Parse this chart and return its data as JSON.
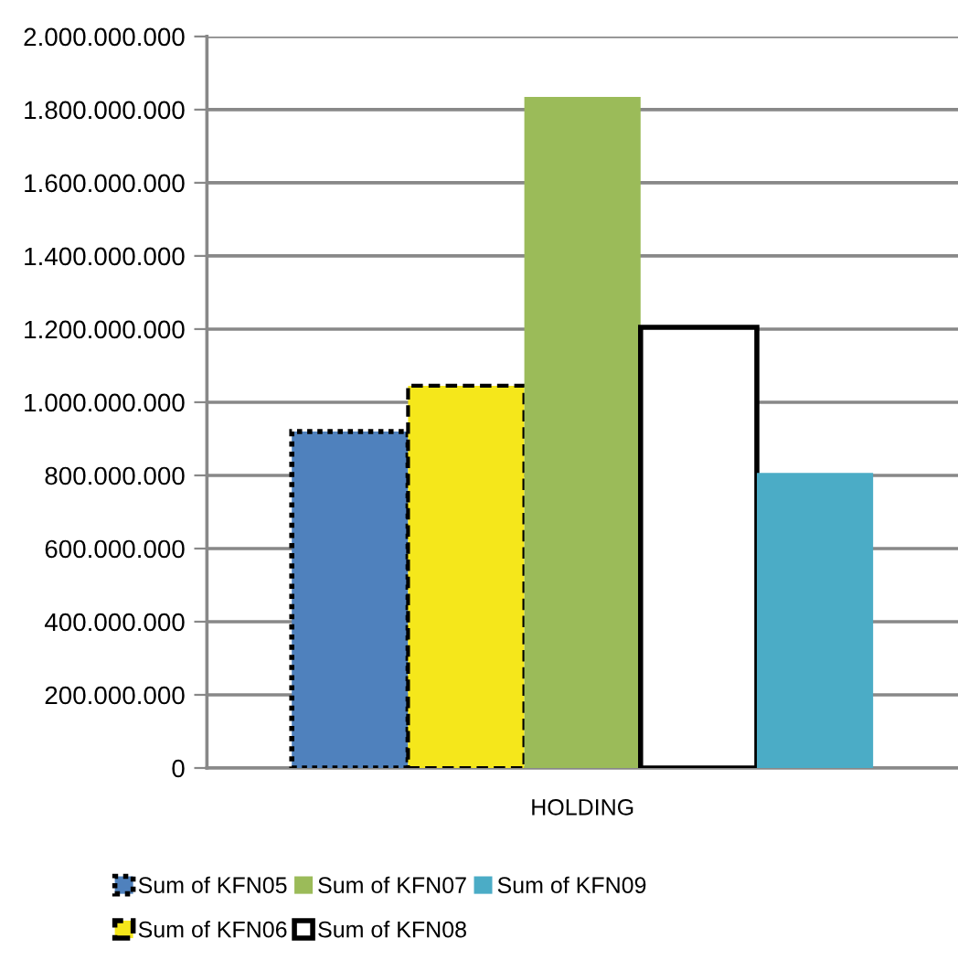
{
  "chart_data": {
    "type": "bar",
    "categories": [
      "HOLDING"
    ],
    "series": [
      {
        "name": "Sum of KFN05",
        "color": "#4f81bd",
        "values": [
          920000000
        ],
        "line_style": "dotted"
      },
      {
        "name": "Sum of KFN06",
        "color": "#f5e71b",
        "values": [
          1045000000
        ],
        "line_style": "dashed"
      },
      {
        "name": "Sum of KFN07",
        "color": "#9bbb59",
        "values": [
          1835000000
        ]
      },
      {
        "name": "Sum of KFN08",
        "color": "#ffffff",
        "values": [
          1205000000
        ],
        "line_style": "solid"
      },
      {
        "name": "Sum of KFN09",
        "color": "#4bacc6",
        "values": [
          807000000
        ]
      }
    ],
    "ylim": [
      0,
      2000000000
    ],
    "yticks": [
      {
        "value": 0,
        "label": "0"
      },
      {
        "value": 200000000,
        "label": "200.000.000"
      },
      {
        "value": 400000000,
        "label": "400.000.000"
      },
      {
        "value": 600000000,
        "label": "600.000.000"
      },
      {
        "value": 800000000,
        "label": "800.000.000"
      },
      {
        "value": 1000000000,
        "label": "1.000.000.000"
      },
      {
        "value": 1200000000,
        "label": "1.200.000.000"
      },
      {
        "value": 1400000000,
        "label": "1.400.000.000"
      },
      {
        "value": 1600000000,
        "label": "1.600.000.000"
      },
      {
        "value": 1800000000,
        "label": "1.800.000.000"
      },
      {
        "value": 2000000000,
        "label": "2.000.000.000"
      }
    ],
    "grid": "y",
    "legend": "bottom"
  }
}
